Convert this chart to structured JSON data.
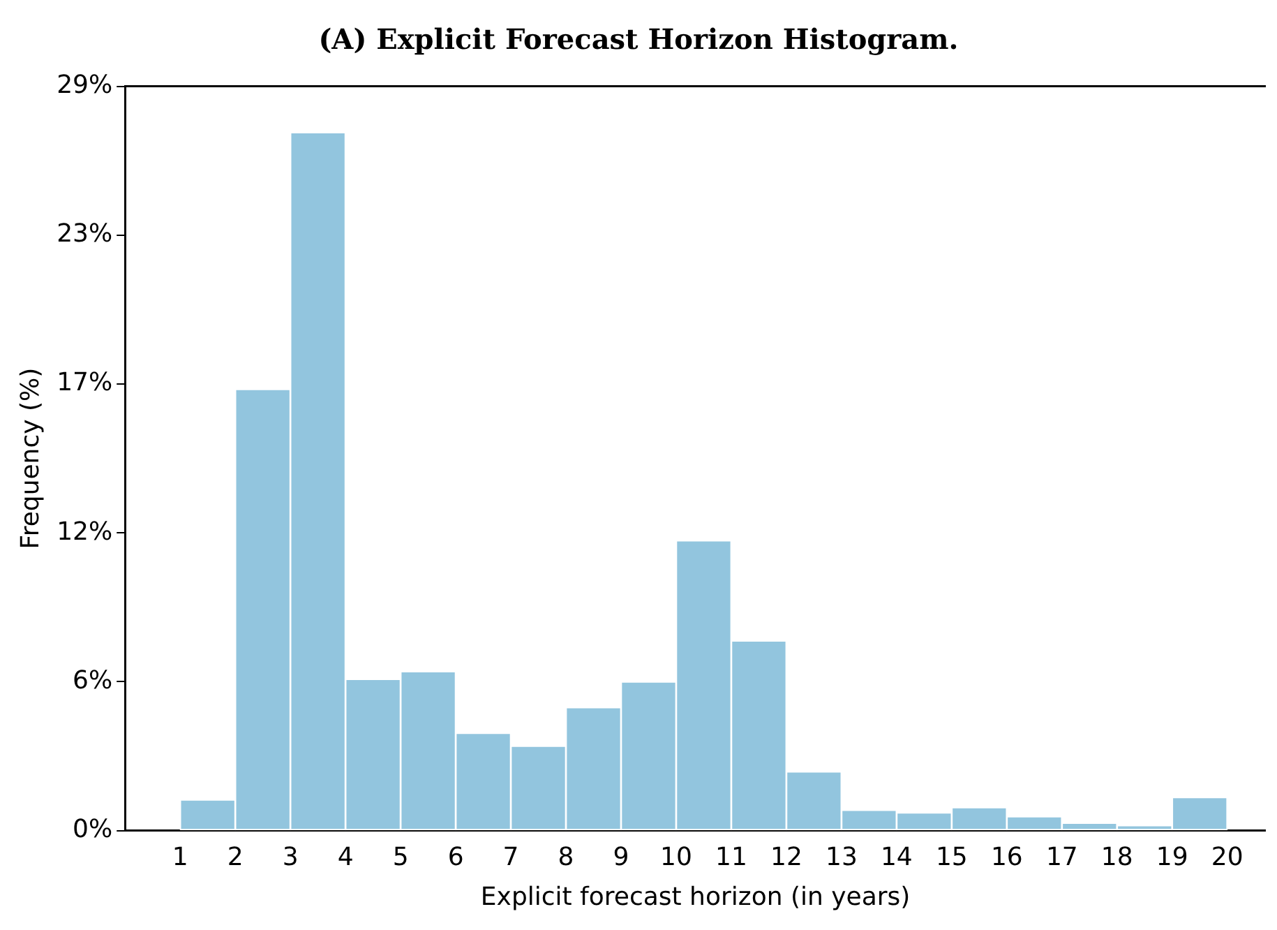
{
  "chart_data": {
    "type": "histogram",
    "title": "(A) Explicit Forecast Horizon Histogram.",
    "xlabel": "Explicit forecast horizon (in years)",
    "ylabel": "Frequency (%)",
    "bins": [
      1,
      2,
      3,
      4,
      5,
      6,
      7,
      8,
      9,
      10,
      11,
      12,
      13,
      14,
      15,
      16,
      17,
      18,
      19,
      20
    ],
    "values": [
      1.2,
      17.2,
      27.2,
      5.9,
      6.2,
      3.8,
      3.3,
      4.8,
      5.8,
      11.3,
      7.4,
      2.3,
      0.8,
      0.7,
      0.9,
      0.55,
      0.3,
      0.2,
      1.3
    ],
    "color": "#92c5de",
    "xlim": [
      0,
      20.7
    ],
    "xticks": [
      1,
      2,
      3,
      4,
      5,
      6,
      7,
      8,
      9,
      10,
      11,
      12,
      13,
      14,
      15,
      16,
      17,
      18,
      19,
      20
    ],
    "ylim": [
      0,
      29
    ],
    "yticks": [
      {
        "value": 0,
        "label": "0%"
      },
      {
        "value": 5.8,
        "label": "6%"
      },
      {
        "value": 11.6,
        "label": "12%"
      },
      {
        "value": 17.4,
        "label": "17%"
      },
      {
        "value": 23.2,
        "label": "23%"
      },
      {
        "value": 29,
        "label": "29%"
      }
    ],
    "grid": false,
    "legend": false
  }
}
